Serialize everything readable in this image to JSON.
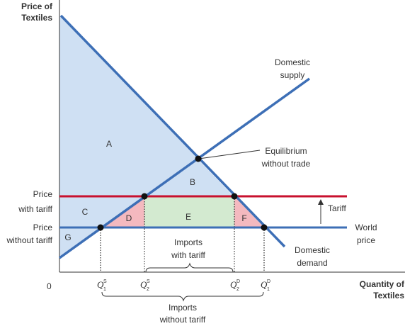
{
  "y_axis_label": [
    "Price of",
    "Textiles"
  ],
  "x_axis_label": [
    "Quantity of",
    "Textiles"
  ],
  "origin_label": "0",
  "price_labels": {
    "with_tariff": [
      "Price",
      "with tariff"
    ],
    "without_tariff": [
      "Price",
      "without tariff"
    ]
  },
  "curve_labels": {
    "domestic_supply": [
      "Domestic",
      "supply"
    ],
    "domestic_demand": [
      "Domestic",
      "demand"
    ],
    "world_price": [
      "World",
      "price"
    ],
    "tariff": "Tariff",
    "equilibrium": [
      "Equilibrium",
      "without trade"
    ]
  },
  "region_labels": {
    "A": "A",
    "B": "B",
    "C": "C",
    "D": "D",
    "E": "E",
    "F": "F",
    "G": "G"
  },
  "quantity_labels": {
    "q1s": {
      "main": "Q",
      "sup": "S",
      "sub": "1"
    },
    "q2s": {
      "main": "Q",
      "sup": "S",
      "sub": "2"
    },
    "q2d": {
      "main": "Q",
      "sup": "D",
      "sub": "2"
    },
    "q1d": {
      "main": "Q",
      "sup": "D",
      "sub": "1"
    }
  },
  "bracket_labels": {
    "imports_with_tariff": [
      "Imports",
      "with tariff"
    ],
    "imports_without_tariff": [
      "Imports",
      "without tariff"
    ]
  },
  "colors": {
    "curve_blue": "#3d6fb6",
    "tariff_red": "#c8102e",
    "region_blue": "#cfe0f3",
    "region_pink": "#f4b9bf",
    "region_green": "#d3ead0",
    "axis": "#333333"
  }
}
